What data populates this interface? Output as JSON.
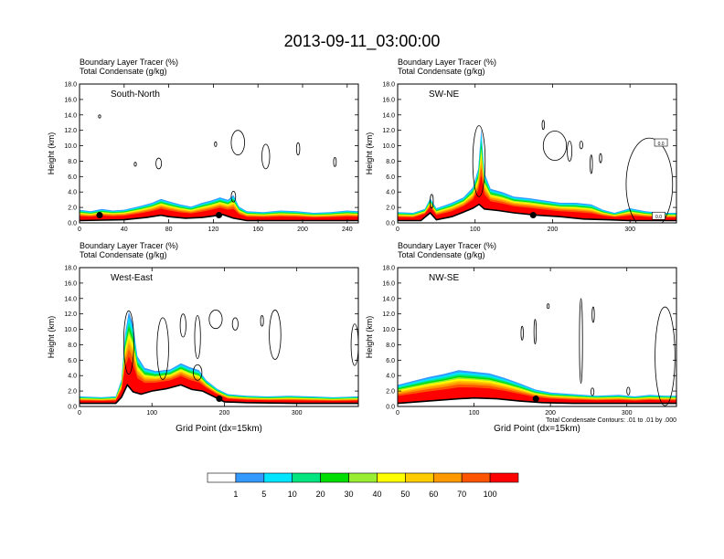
{
  "figure_title": "2013-09-11_03:00:00",
  "chart_data": [
    {
      "type": "heatmap",
      "panel_label": "South-North",
      "left_label_1": "Boundary Layer Tracer (%)",
      "left_label_2": "Total Condensate (g/kg)",
      "ylabel": "Height (km)",
      "xlabel": "",
      "xlim": [
        0,
        250
      ],
      "ylim": [
        0,
        18
      ],
      "xticks": [
        "0",
        "40",
        "80",
        "120",
        "160",
        "200",
        "240"
      ],
      "xtick_values": [
        0,
        40,
        80,
        120,
        160,
        200,
        240
      ],
      "yticks": [
        "0.0",
        "2.0",
        "4.0",
        "6.0",
        "8.0",
        "10.0",
        "12.0",
        "14.0",
        "16.0",
        "18.0"
      ],
      "ytick_values": [
        0,
        2,
        4,
        6,
        8,
        10,
        12,
        14,
        16,
        18
      ],
      "tracer_top_km": [
        [
          0,
          1.7
        ],
        [
          10,
          1.5
        ],
        [
          20,
          1.8
        ],
        [
          30,
          1.6
        ],
        [
          40,
          1.7
        ],
        [
          55,
          2.2
        ],
        [
          65,
          2.6
        ],
        [
          73,
          3.1
        ],
        [
          80,
          2.8
        ],
        [
          90,
          2.4
        ],
        [
          100,
          2.1
        ],
        [
          110,
          2.6
        ],
        [
          118,
          2.9
        ],
        [
          126,
          3.3
        ],
        [
          133,
          3.0
        ],
        [
          138,
          3.6
        ],
        [
          143,
          2.1
        ],
        [
          150,
          1.5
        ],
        [
          165,
          1.4
        ],
        [
          180,
          1.6
        ],
        [
          195,
          1.5
        ],
        [
          210,
          1.3
        ],
        [
          225,
          1.4
        ],
        [
          240,
          1.6
        ],
        [
          250,
          1.5
        ]
      ],
      "terrain_km": [
        [
          0,
          0.3
        ],
        [
          20,
          0.35
        ],
        [
          40,
          0.4
        ],
        [
          60,
          0.7
        ],
        [
          73,
          1.0
        ],
        [
          80,
          0.8
        ],
        [
          95,
          0.6
        ],
        [
          110,
          0.7
        ],
        [
          120,
          0.9
        ],
        [
          128,
          1.1
        ],
        [
          138,
          0.6
        ],
        [
          150,
          0.3
        ],
        [
          200,
          0.3
        ],
        [
          250,
          0.3
        ]
      ],
      "condensate_contours": [
        {
          "cx": 18,
          "cy": 13.8,
          "rx": 0.8,
          "ry": 0.2
        },
        {
          "cx": 50,
          "cy": 7.6,
          "rx": 0.8,
          "ry": 0.25
        },
        {
          "cx": 71,
          "cy": 7.7,
          "rx": 2.5,
          "ry": 0.7
        },
        {
          "cx": 122,
          "cy": 10.2,
          "rx": 0.8,
          "ry": 0.3
        },
        {
          "cx": 142,
          "cy": 10.4,
          "rx": 6.0,
          "ry": 1.6
        },
        {
          "cx": 167,
          "cy": 8.6,
          "rx": 3.5,
          "ry": 1.6
        },
        {
          "cx": 196,
          "cy": 9.6,
          "rx": 1.5,
          "ry": 0.8
        },
        {
          "cx": 229,
          "cy": 7.9,
          "rx": 1.2,
          "ry": 0.6
        },
        {
          "cx": 138,
          "cy": 3.4,
          "rx": 2.0,
          "ry": 0.7
        }
      ],
      "markers": [
        [
          18,
          1.0
        ],
        [
          125,
          1.0
        ]
      ]
    },
    {
      "type": "heatmap",
      "panel_label": "SW-NE",
      "left_label_1": "Boundary Layer Tracer (%)",
      "left_label_2": "Total Condensate (g/kg)",
      "ylabel": "Height (km)",
      "xlabel": "",
      "xlim": [
        0,
        360
      ],
      "ylim": [
        0,
        18
      ],
      "xticks": [
        "0",
        "100",
        "200",
        "300"
      ],
      "xtick_values": [
        0,
        100,
        200,
        300
      ],
      "yticks": [
        "0.0",
        "2.0",
        "4.0",
        "6.0",
        "8.0",
        "10.0",
        "12.0",
        "14.0",
        "16.0",
        "18.0"
      ],
      "ytick_values": [
        0,
        2,
        4,
        6,
        8,
        10,
        12,
        14,
        16,
        18
      ],
      "tracer_top_km": [
        [
          0,
          1.4
        ],
        [
          20,
          1.3
        ],
        [
          35,
          1.8
        ],
        [
          42,
          3.2
        ],
        [
          50,
          1.9
        ],
        [
          70,
          2.6
        ],
        [
          85,
          3.3
        ],
        [
          97,
          4.6
        ],
        [
          104,
          7.0
        ],
        [
          108,
          12.2
        ],
        [
          112,
          6.5
        ],
        [
          120,
          4.4
        ],
        [
          135,
          4.0
        ],
        [
          150,
          3.4
        ],
        [
          170,
          3.2
        ],
        [
          190,
          2.9
        ],
        [
          210,
          2.6
        ],
        [
          230,
          2.6
        ],
        [
          250,
          2.4
        ],
        [
          265,
          1.7
        ],
        [
          280,
          1.3
        ],
        [
          300,
          1.9
        ],
        [
          320,
          1.5
        ],
        [
          340,
          1.3
        ],
        [
          360,
          1.3
        ]
      ],
      "terrain_km": [
        [
          0,
          0.3
        ],
        [
          30,
          0.3
        ],
        [
          42,
          1.3
        ],
        [
          50,
          0.4
        ],
        [
          70,
          0.8
        ],
        [
          85,
          1.4
        ],
        [
          97,
          1.9
        ],
        [
          105,
          2.4
        ],
        [
          112,
          1.8
        ],
        [
          130,
          1.6
        ],
        [
          150,
          1.3
        ],
        [
          180,
          1.0
        ],
        [
          210,
          0.8
        ],
        [
          240,
          0.5
        ],
        [
          270,
          0.4
        ],
        [
          300,
          0.3
        ],
        [
          360,
          0.3
        ]
      ],
      "condensate_contours": [
        {
          "cx": 105,
          "cy": 8.0,
          "rx": 8,
          "ry": 4.6
        },
        {
          "cx": 203,
          "cy": 10.0,
          "rx": 15,
          "ry": 1.9
        },
        {
          "cx": 222,
          "cy": 9.3,
          "rx": 3,
          "ry": 1.3
        },
        {
          "cx": 237,
          "cy": 10.1,
          "rx": 2,
          "ry": 0.5
        },
        {
          "cx": 250,
          "cy": 7.6,
          "rx": 1.5,
          "ry": 1.2
        },
        {
          "cx": 262,
          "cy": 8.4,
          "rx": 1.5,
          "ry": 0.6
        },
        {
          "cx": 325,
          "cy": 5.0,
          "rx": 30,
          "ry": 6.0
        },
        {
          "cx": 44,
          "cy": 2.8,
          "rx": 2,
          "ry": 0.9
        },
        {
          "cx": 188,
          "cy": 12.7,
          "rx": 1.5,
          "ry": 0.6
        }
      ],
      "markers": [
        [
          175,
          1.0
        ]
      ],
      "box_labels": [
        {
          "x": 340,
          "y": 10.3,
          "text": "0.0"
        },
        {
          "x": 337,
          "y": 0.8,
          "text": "0.0"
        }
      ]
    },
    {
      "type": "heatmap",
      "panel_label": "West-East",
      "left_label_1": "Boundary Layer Tracer (%)",
      "left_label_2": "Total Condensate (g/kg)",
      "ylabel": "Height (km)",
      "xlabel": "Grid Point  (dx=15km)",
      "xlim": [
        0,
        385
      ],
      "ylim": [
        0,
        18
      ],
      "xticks": [
        "0",
        "100",
        "200",
        "300"
      ],
      "xtick_values": [
        0,
        100,
        200,
        300
      ],
      "yticks": [
        "0.0",
        "2.0",
        "4.0",
        "6.0",
        "8.0",
        "10.0",
        "12.0",
        "14.0",
        "16.0",
        "18.0"
      ],
      "ytick_values": [
        0,
        2,
        4,
        6,
        8,
        10,
        12,
        14,
        16,
        18
      ],
      "tracer_top_km": [
        [
          0,
          1.3
        ],
        [
          30,
          1.2
        ],
        [
          50,
          1.3
        ],
        [
          58,
          3.5
        ],
        [
          63,
          9.5
        ],
        [
          68,
          12.3
        ],
        [
          74,
          10.6
        ],
        [
          80,
          6.5
        ],
        [
          90,
          5.0
        ],
        [
          105,
          4.6
        ],
        [
          125,
          4.8
        ],
        [
          140,
          5.6
        ],
        [
          152,
          5.1
        ],
        [
          165,
          4.7
        ],
        [
          175,
          3.4
        ],
        [
          190,
          2.3
        ],
        [
          205,
          1.6
        ],
        [
          230,
          1.4
        ],
        [
          260,
          1.3
        ],
        [
          290,
          1.4
        ],
        [
          320,
          1.3
        ],
        [
          350,
          1.2
        ],
        [
          385,
          1.3
        ]
      ],
      "terrain_km": [
        [
          0,
          0.4
        ],
        [
          50,
          0.4
        ],
        [
          58,
          1.2
        ],
        [
          66,
          2.8
        ],
        [
          74,
          1.9
        ],
        [
          85,
          1.6
        ],
        [
          100,
          2.0
        ],
        [
          120,
          2.3
        ],
        [
          140,
          2.8
        ],
        [
          155,
          2.2
        ],
        [
          170,
          2.0
        ],
        [
          185,
          1.3
        ],
        [
          200,
          0.6
        ],
        [
          230,
          0.5
        ],
        [
          300,
          0.4
        ],
        [
          385,
          0.4
        ]
      ],
      "condensate_contours": [
        {
          "cx": 68,
          "cy": 8.3,
          "rx": 7,
          "ry": 4.1
        },
        {
          "cx": 115,
          "cy": 7.5,
          "rx": 8,
          "ry": 4.0
        },
        {
          "cx": 143,
          "cy": 10.5,
          "rx": 4,
          "ry": 1.5
        },
        {
          "cx": 163,
          "cy": 9.0,
          "rx": 4,
          "ry": 2.8
        },
        {
          "cx": 188,
          "cy": 11.3,
          "rx": 9,
          "ry": 1.2
        },
        {
          "cx": 215,
          "cy": 10.7,
          "rx": 4,
          "ry": 0.8
        },
        {
          "cx": 252,
          "cy": 11.1,
          "rx": 2,
          "ry": 0.7
        },
        {
          "cx": 270,
          "cy": 9.3,
          "rx": 8,
          "ry": 3.2
        },
        {
          "cx": 380,
          "cy": 8.0,
          "rx": 5,
          "ry": 2.7
        },
        {
          "cx": 163,
          "cy": 4.4,
          "rx": 6,
          "ry": 1.0
        }
      ],
      "markers": [
        [
          193,
          1.0
        ]
      ]
    },
    {
      "type": "heatmap",
      "panel_label": "NW-SE",
      "left_label_1": "Boundary Layer Tracer (%)",
      "left_label_2": "Total Condensate (g/kg)",
      "ylabel": "Height (km)",
      "xlabel": "Grid Point  (dx=15km)",
      "xlim": [
        0,
        365
      ],
      "ylim": [
        0,
        18
      ],
      "xticks": [
        "0",
        "100",
        "200",
        "300"
      ],
      "xtick_values": [
        0,
        100,
        200,
        300
      ],
      "yticks": [
        "0.0",
        "2.0",
        "4.0",
        "6.0",
        "8.0",
        "10.0",
        "12.0",
        "14.0",
        "16.0",
        "18.0"
      ],
      "ytick_values": [
        0,
        2,
        4,
        6,
        8,
        10,
        12,
        14,
        16,
        18
      ],
      "tracer_top_km": [
        [
          0,
          2.8
        ],
        [
          20,
          3.3
        ],
        [
          40,
          3.8
        ],
        [
          60,
          4.2
        ],
        [
          80,
          4.7
        ],
        [
          100,
          4.5
        ],
        [
          120,
          4.3
        ],
        [
          140,
          3.7
        ],
        [
          160,
          3.0
        ],
        [
          180,
          2.2
        ],
        [
          200,
          1.8
        ],
        [
          230,
          1.6
        ],
        [
          260,
          1.4
        ],
        [
          290,
          1.5
        ],
        [
          310,
          1.3
        ],
        [
          330,
          1.5
        ],
        [
          350,
          1.4
        ],
        [
          365,
          1.4
        ]
      ],
      "terrain_km": [
        [
          0,
          0.4
        ],
        [
          40,
          0.7
        ],
        [
          80,
          1.0
        ],
        [
          100,
          1.1
        ],
        [
          130,
          1.0
        ],
        [
          160,
          0.7
        ],
        [
          190,
          0.5
        ],
        [
          230,
          0.4
        ],
        [
          300,
          0.4
        ],
        [
          365,
          0.4
        ]
      ],
      "condensate_contours": [
        {
          "cx": 163,
          "cy": 9.5,
          "rx": 1.5,
          "ry": 0.9
        },
        {
          "cx": 180,
          "cy": 9.7,
          "rx": 1.5,
          "ry": 1.6
        },
        {
          "cx": 197,
          "cy": 13.0,
          "rx": 1.0,
          "ry": 0.3
        },
        {
          "cx": 240,
          "cy": 8.5,
          "rx": 2.0,
          "ry": 5.5
        },
        {
          "cx": 256,
          "cy": 11.9,
          "rx": 1.5,
          "ry": 1.0
        },
        {
          "cx": 350,
          "cy": 6.5,
          "rx": 13,
          "ry": 6.4
        },
        {
          "cx": 255,
          "cy": 1.9,
          "rx": 2.0,
          "ry": 0.5
        },
        {
          "cx": 302,
          "cy": 2.0,
          "rx": 2.0,
          "ry": 0.5
        }
      ],
      "markers": [
        [
          181,
          1.0
        ]
      ],
      "footnote": "Total Condensate Contours: .01 to .01 by .000"
    }
  ],
  "colorbar": {
    "labels": [
      "1",
      "5",
      "10",
      "20",
      "30",
      "40",
      "50",
      "60",
      "70",
      "100"
    ],
    "colors": [
      "#ffffff",
      "#3399ff",
      "#00e5ff",
      "#00e57f",
      "#00dd00",
      "#99ee33",
      "#ffff00",
      "#ffcc00",
      "#ff9900",
      "#ff5500",
      "#ff0000"
    ]
  }
}
